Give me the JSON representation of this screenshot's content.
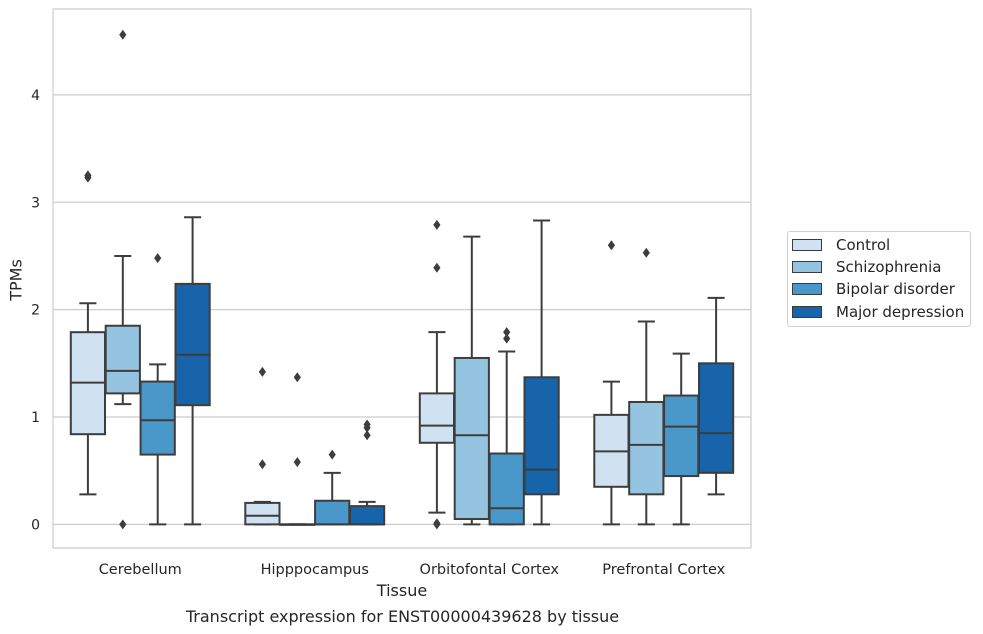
{
  "chart_data": {
    "type": "box",
    "caption": "Transcript expression for ENST00000439628 by tissue",
    "xlabel": "Tissue",
    "ylabel": "TPMs",
    "ylim": [
      -0.22,
      4.8
    ],
    "yticks": [
      0,
      1,
      2,
      3,
      4
    ],
    "grid": "horizontal",
    "legend_position": "right",
    "categories": [
      "Cerebellum",
      "Hipppocampus",
      "Orbitofontal Cortex",
      "Prefrontal Cortex"
    ],
    "series": [
      {
        "name": "Control",
        "color": "#d0e1f2",
        "boxes": [
          {
            "whislo": 0.28,
            "q1": 0.84,
            "med": 1.32,
            "q3": 1.79,
            "whishi": 2.06,
            "fliers": [
              3.23,
              3.25
            ]
          },
          {
            "whislo": 0.0,
            "q1": 0.0,
            "med": 0.08,
            "q3": 0.2,
            "whishi": 0.21,
            "fliers": [
              0.56,
              1.42
            ]
          },
          {
            "whislo": 0.11,
            "q1": 0.76,
            "med": 0.92,
            "q3": 1.22,
            "whishi": 1.79,
            "fliers": [
              0.0,
              0.01,
              2.39,
              2.79
            ]
          },
          {
            "whislo": 0.0,
            "q1": 0.35,
            "med": 0.68,
            "q3": 1.02,
            "whishi": 1.33,
            "fliers": [
              2.6
            ]
          }
        ]
      },
      {
        "name": "Schizophrenia",
        "color": "#94c4df",
        "boxes": [
          {
            "whislo": 1.12,
            "q1": 1.22,
            "med": 1.43,
            "q3": 1.85,
            "whishi": 2.5,
            "fliers": [
              0.0,
              4.56
            ]
          },
          {
            "whislo": 0.0,
            "q1": 0.0,
            "med": 0.0,
            "q3": 0.0,
            "whishi": 0.0,
            "fliers": [
              0.58,
              1.37
            ]
          },
          {
            "whislo": 0.0,
            "q1": 0.05,
            "med": 0.83,
            "q3": 1.55,
            "whishi": 2.68,
            "fliers": []
          },
          {
            "whislo": 0.0,
            "q1": 0.28,
            "med": 0.74,
            "q3": 1.14,
            "whishi": 1.89,
            "fliers": [
              2.53
            ]
          }
        ]
      },
      {
        "name": "Bipolar disorder",
        "color": "#4a98c9",
        "boxes": [
          {
            "whislo": 0.0,
            "q1": 0.65,
            "med": 0.97,
            "q3": 1.33,
            "whishi": 1.49,
            "fliers": [
              2.48
            ]
          },
          {
            "whislo": 0.0,
            "q1": 0.0,
            "med": 0.0,
            "q3": 0.22,
            "whishi": 0.48,
            "fliers": [
              0.65
            ]
          },
          {
            "whislo": 0.0,
            "q1": 0.0,
            "med": 0.15,
            "q3": 0.66,
            "whishi": 1.61,
            "fliers": [
              1.73,
              1.79
            ]
          },
          {
            "whislo": 0.0,
            "q1": 0.45,
            "med": 0.91,
            "q3": 1.2,
            "whishi": 1.59,
            "fliers": []
          }
        ]
      },
      {
        "name": "Major depression",
        "color": "#1764ab",
        "boxes": [
          {
            "whislo": 0.0,
            "q1": 1.11,
            "med": 1.58,
            "q3": 2.24,
            "whishi": 2.86,
            "fliers": []
          },
          {
            "whislo": 0.0,
            "q1": 0.0,
            "med": 0.0,
            "q3": 0.17,
            "whishi": 0.21,
            "fliers": [
              0.83,
              0.9,
              0.93
            ]
          },
          {
            "whislo": 0.0,
            "q1": 0.28,
            "med": 0.51,
            "q3": 1.37,
            "whishi": 2.83,
            "fliers": []
          },
          {
            "whislo": 0.28,
            "q1": 0.48,
            "med": 0.85,
            "q3": 1.5,
            "whishi": 2.11,
            "fliers": []
          }
        ]
      }
    ]
  }
}
